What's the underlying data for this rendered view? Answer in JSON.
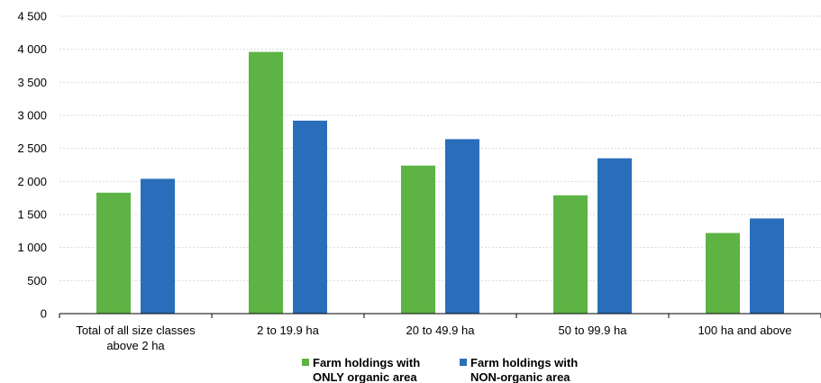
{
  "chart_data": {
    "type": "bar",
    "categories": [
      [
        "Total of all size classes",
        "above 2 ha"
      ],
      [
        "2 to 19.9 ha"
      ],
      [
        "20 to 49.9 ha"
      ],
      [
        "50 to 99.9 ha"
      ],
      [
        "100 ha and above"
      ]
    ],
    "series": [
      {
        "name": [
          "Farm holdings with",
          "ONLY organic area"
        ],
        "color": "#5db344",
        "values": [
          1830,
          3960,
          2240,
          1790,
          1220
        ]
      },
      {
        "name": [
          "Farm holdings with",
          "NON-organic area"
        ],
        "color": "#2a6ebb",
        "values": [
          2040,
          2920,
          2640,
          2350,
          1440
        ]
      }
    ],
    "yticks": [
      "0",
      "500",
      "1 000",
      "1 500",
      "2 000",
      "2 500",
      "3 000",
      "3 500",
      "4 000",
      "4 500"
    ],
    "ylim": [
      0,
      4500
    ],
    "grid": true,
    "legend_position": "bottom-center",
    "title": "",
    "xlabel": "",
    "ylabel": ""
  }
}
